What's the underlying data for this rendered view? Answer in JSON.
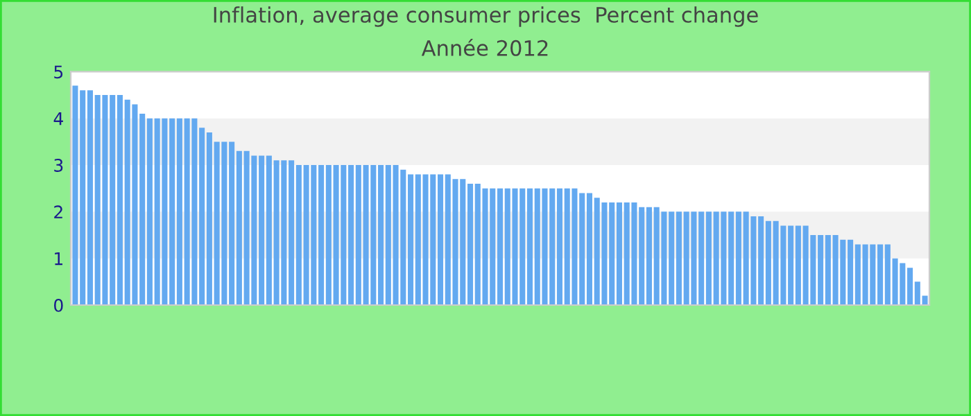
{
  "chart_data": {
    "type": "bar",
    "title": "Inflation, average consumer prices  Percent change",
    "subtitle": "Année 2012",
    "categories": [
      null,
      null,
      null,
      null,
      null,
      null,
      null,
      null,
      null,
      null,
      null,
      null,
      null,
      null,
      null,
      null,
      null,
      null,
      null,
      null,
      null,
      null,
      null,
      null,
      null,
      null,
      null,
      null,
      null,
      null,
      null,
      null,
      null,
      null,
      null,
      null,
      null,
      null,
      null,
      null,
      null,
      null,
      null,
      null,
      null,
      null,
      null,
      null,
      null,
      null,
      null,
      null,
      null,
      null,
      null,
      null,
      null,
      null,
      null,
      null,
      null,
      null,
      null,
      null,
      null,
      null,
      null,
      null,
      null,
      null,
      null,
      null,
      null,
      null,
      null,
      null,
      null,
      null,
      null,
      null,
      null,
      null,
      null,
      null,
      null,
      null,
      null,
      null,
      null,
      null,
      null,
      null,
      null,
      null,
      null,
      null,
      null,
      null,
      null,
      null,
      null,
      null,
      null,
      null,
      null,
      null,
      null,
      null,
      null,
      null,
      null,
      null,
      null,
      null,
      null
    ],
    "values": [
      4.7,
      4.6,
      4.6,
      4.5,
      4.5,
      4.5,
      4.5,
      4.4,
      4.3,
      4.1,
      4.0,
      4.0,
      4.0,
      4.0,
      4.0,
      4.0,
      4.0,
      3.8,
      3.7,
      3.5,
      3.5,
      3.5,
      3.3,
      3.3,
      3.2,
      3.2,
      3.2,
      3.1,
      3.1,
      3.1,
      3.0,
      3.0,
      3.0,
      3.0,
      3.0,
      3.0,
      3.0,
      3.0,
      3.0,
      3.0,
      3.0,
      3.0,
      3.0,
      3.0,
      2.9,
      2.8,
      2.8,
      2.8,
      2.8,
      2.8,
      2.8,
      2.7,
      2.7,
      2.6,
      2.6,
      2.5,
      2.5,
      2.5,
      2.5,
      2.5,
      2.5,
      2.5,
      2.5,
      2.5,
      2.5,
      2.5,
      2.5,
      2.5,
      2.4,
      2.4,
      2.3,
      2.2,
      2.2,
      2.2,
      2.2,
      2.2,
      2.1,
      2.1,
      2.1,
      2.0,
      2.0,
      2.0,
      2.0,
      2.0,
      2.0,
      2.0,
      2.0,
      2.0,
      2.0,
      2.0,
      2.0,
      1.9,
      1.9,
      1.8,
      1.8,
      1.7,
      1.7,
      1.7,
      1.7,
      1.5,
      1.5,
      1.5,
      1.5,
      1.4,
      1.4,
      1.3,
      1.3,
      1.3,
      1.3,
      1.3,
      1.0,
      0.9,
      0.8,
      0.5,
      0.2
    ],
    "color": "#63a9f0",
    "ylim": [
      0,
      5
    ],
    "yticks": [
      0,
      1,
      2,
      3,
      4,
      5
    ],
    "legend": false
  }
}
